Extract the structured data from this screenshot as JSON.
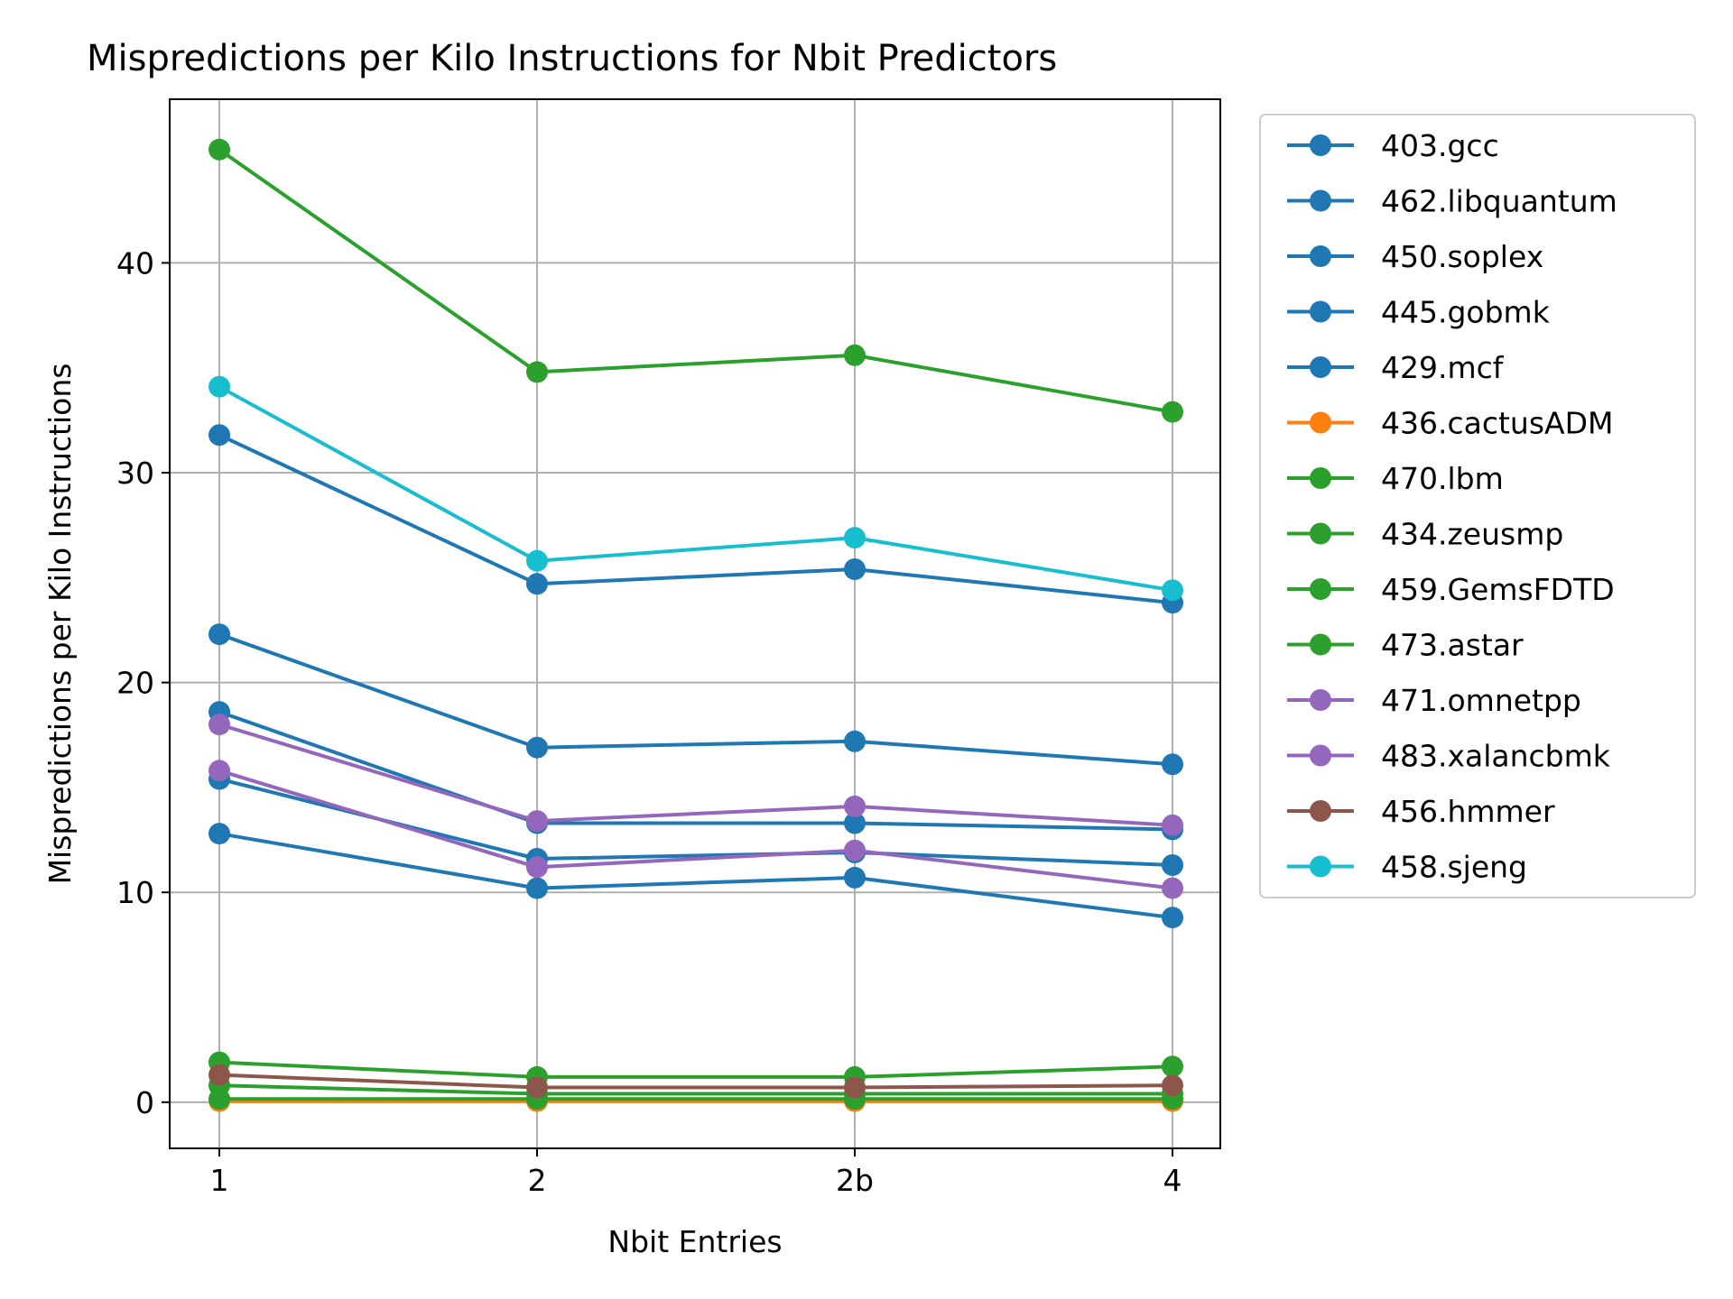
{
  "chart_data": {
    "type": "line",
    "title": "Mispredictions per Kilo Instructions for Nbit Predictors",
    "xlabel": "Nbit Entries",
    "ylabel": "Mispredictions per Kilo Instructions",
    "categories": [
      "1",
      "2",
      "2b",
      "4"
    ],
    "ylim": [
      -2.2,
      47.8
    ],
    "yticks": [
      0,
      10,
      20,
      30,
      40
    ],
    "grid": true,
    "legend_position": "outside-right",
    "series": [
      {
        "name": "403.gcc",
        "color": "#1f77b4",
        "values": [
          22.3,
          16.9,
          17.2,
          16.1
        ]
      },
      {
        "name": "462.libquantum",
        "color": "#1f77b4",
        "values": [
          12.8,
          10.2,
          10.7,
          8.8
        ]
      },
      {
        "name": "450.soplex",
        "color": "#1f77b4",
        "values": [
          18.6,
          13.3,
          13.3,
          13.0
        ]
      },
      {
        "name": "445.gobmk",
        "color": "#1f77b4",
        "values": [
          15.4,
          11.6,
          11.9,
          11.3
        ]
      },
      {
        "name": "429.mcf",
        "color": "#1f77b4",
        "values": [
          31.8,
          24.7,
          25.4,
          23.8
        ]
      },
      {
        "name": "436.cactusADM",
        "color": "#ff7f0e",
        "values": [
          0.05,
          0.05,
          0.05,
          0.05
        ]
      },
      {
        "name": "470.lbm",
        "color": "#2ca02c",
        "values": [
          45.4,
          34.8,
          35.6,
          32.9
        ]
      },
      {
        "name": "434.zeusmp",
        "color": "#2ca02c",
        "values": [
          0.15,
          0.15,
          0.15,
          0.15
        ]
      },
      {
        "name": "459.GemsFDTD",
        "color": "#2ca02c",
        "values": [
          0.8,
          0.4,
          0.4,
          0.4
        ]
      },
      {
        "name": "473.astar",
        "color": "#2ca02c",
        "values": [
          1.9,
          1.2,
          1.2,
          1.7
        ]
      },
      {
        "name": "471.omnetpp",
        "color": "#9467bd",
        "values": [
          15.8,
          11.2,
          12.0,
          10.2
        ]
      },
      {
        "name": "483.xalancbmk",
        "color": "#9467bd",
        "values": [
          18.0,
          13.4,
          14.1,
          13.2
        ]
      },
      {
        "name": "456.hmmer",
        "color": "#8c564b",
        "values": [
          1.3,
          0.7,
          0.7,
          0.8
        ]
      },
      {
        "name": "458.sjeng",
        "color": "#17becf",
        "values": [
          34.1,
          25.8,
          26.9,
          24.4
        ]
      }
    ]
  }
}
